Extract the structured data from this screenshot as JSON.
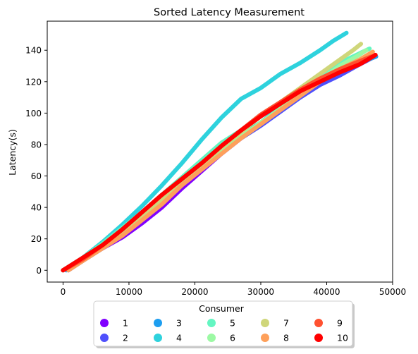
{
  "chart_data": {
    "type": "scatter",
    "title": "Sorted Latency Measurement",
    "xlabel": "",
    "ylabel": "Latency(s)",
    "xlim": [
      -2400,
      50000
    ],
    "ylim": [
      -7.5,
      158.5
    ],
    "xticks": [
      0,
      10000,
      20000,
      30000,
      40000,
      50000
    ],
    "yticks": [
      0,
      20,
      40,
      60,
      80,
      100,
      120,
      140
    ],
    "grid": false,
    "legend": {
      "title": "Consumer",
      "placement": "bottom-center",
      "columns": 5
    },
    "series": [
      {
        "name": "1",
        "color": "#8000ff",
        "x": [
          0,
          3000,
          6000,
          9000,
          12000,
          15000,
          18000,
          21000,
          24000,
          27000,
          30000,
          33000,
          36000,
          39000,
          42000,
          45000,
          47200
        ],
        "y": [
          0,
          7,
          14,
          21,
          30,
          40,
          52,
          63,
          74,
          84,
          93,
          103,
          112,
          120,
          127,
          133,
          137
        ]
      },
      {
        "name": "2",
        "color": "#4f50fc",
        "x": [
          800,
          3000,
          6000,
          9000,
          12000,
          15000,
          18000,
          21000,
          24000,
          27000,
          30000,
          33000,
          36000,
          39000,
          42000,
          45000,
          47300
        ],
        "y": [
          0,
          6,
          14,
          23,
          33,
          44,
          55,
          65,
          75,
          84,
          92,
          101,
          110,
          118,
          124,
          131,
          136
        ]
      },
      {
        "name": "3",
        "color": "#1d9ef0",
        "x": [
          500,
          3000,
          6000,
          9000,
          12000,
          15000,
          18000,
          21000,
          24000,
          27000,
          30000,
          33000,
          36000,
          39000,
          42000,
          45000,
          47500
        ],
        "y": [
          0,
          7,
          15,
          24,
          34,
          45,
          55,
          66,
          76,
          86,
          94,
          104,
          112,
          120,
          126,
          132,
          136
        ]
      },
      {
        "name": "4",
        "color": "#2ed2dd",
        "x": [
          0,
          3000,
          6000,
          9000,
          12000,
          15000,
          18000,
          21000,
          24000,
          27000,
          30000,
          33000,
          36000,
          39000,
          41000,
          43000
        ],
        "y": [
          0,
          8,
          18,
          29,
          41,
          54,
          68,
          83,
          97,
          109,
          116,
          125,
          132,
          140,
          146,
          151
        ]
      },
      {
        "name": "5",
        "color": "#64f6c2",
        "x": [
          0,
          3000,
          6000,
          9000,
          12000,
          15000,
          18000,
          21000,
          24000,
          27000,
          30000,
          33000,
          36000,
          39000,
          42000,
          44500,
          46500
        ],
        "y": [
          0,
          8,
          17,
          27,
          37,
          48,
          59,
          70,
          81,
          89,
          99,
          107,
          115,
          124,
          132,
          137,
          141
        ]
      },
      {
        "name": "6",
        "color": "#9cf9a4",
        "x": [
          0,
          3000,
          6000,
          9000,
          12000,
          15000,
          18000,
          21000,
          24000,
          27000,
          30000,
          33000,
          36000,
          39000,
          42000,
          44500,
          46000
        ],
        "y": [
          0,
          7,
          16,
          25,
          35,
          46,
          56,
          66,
          76,
          85,
          94,
          103,
          112,
          121,
          130,
          136,
          140
        ]
      },
      {
        "name": "7",
        "color": "#cfd67a",
        "x": [
          0,
          3000,
          6000,
          9000,
          12000,
          15000,
          18000,
          21000,
          24000,
          27000,
          30000,
          33000,
          36000,
          39000,
          42000,
          44000,
          45200
        ],
        "y": [
          0,
          7,
          15,
          24,
          34,
          45,
          56,
          67,
          78,
          88,
          98,
          107,
          116,
          125,
          134,
          140,
          144
        ]
      },
      {
        "name": "8",
        "color": "#fea05a",
        "x": [
          800,
          3000,
          6000,
          9000,
          12000,
          15000,
          18000,
          21000,
          24000,
          27000,
          30000,
          33000,
          36000,
          39000,
          42000,
          45000,
          47000
        ],
        "y": [
          0,
          6,
          14,
          22,
          32,
          42,
          54,
          64,
          74,
          84,
          93,
          102,
          111,
          120,
          128,
          134,
          139
        ]
      },
      {
        "name": "9",
        "color": "#ff5130",
        "x": [
          0,
          3000,
          6000,
          9000,
          12000,
          15000,
          18000,
          21000,
          24000,
          27000,
          30000,
          33000,
          36000,
          39000,
          42000,
          45000,
          46800
        ],
        "y": [
          0,
          7,
          16,
          26,
          37,
          48,
          58,
          68,
          79,
          89,
          99,
          107,
          115,
          122,
          128,
          133,
          136
        ]
      },
      {
        "name": "10",
        "color": "#ff0000",
        "x": [
          0,
          3000,
          6000,
          9000,
          12000,
          15000,
          18000,
          21000,
          24000,
          27000,
          30000,
          33000,
          36000,
          39000,
          42000,
          45000,
          47400
        ],
        "y": [
          0,
          8,
          16,
          26,
          37,
          48,
          58,
          68,
          79,
          89,
          98,
          106,
          114,
          120,
          126,
          131,
          137
        ]
      }
    ]
  }
}
